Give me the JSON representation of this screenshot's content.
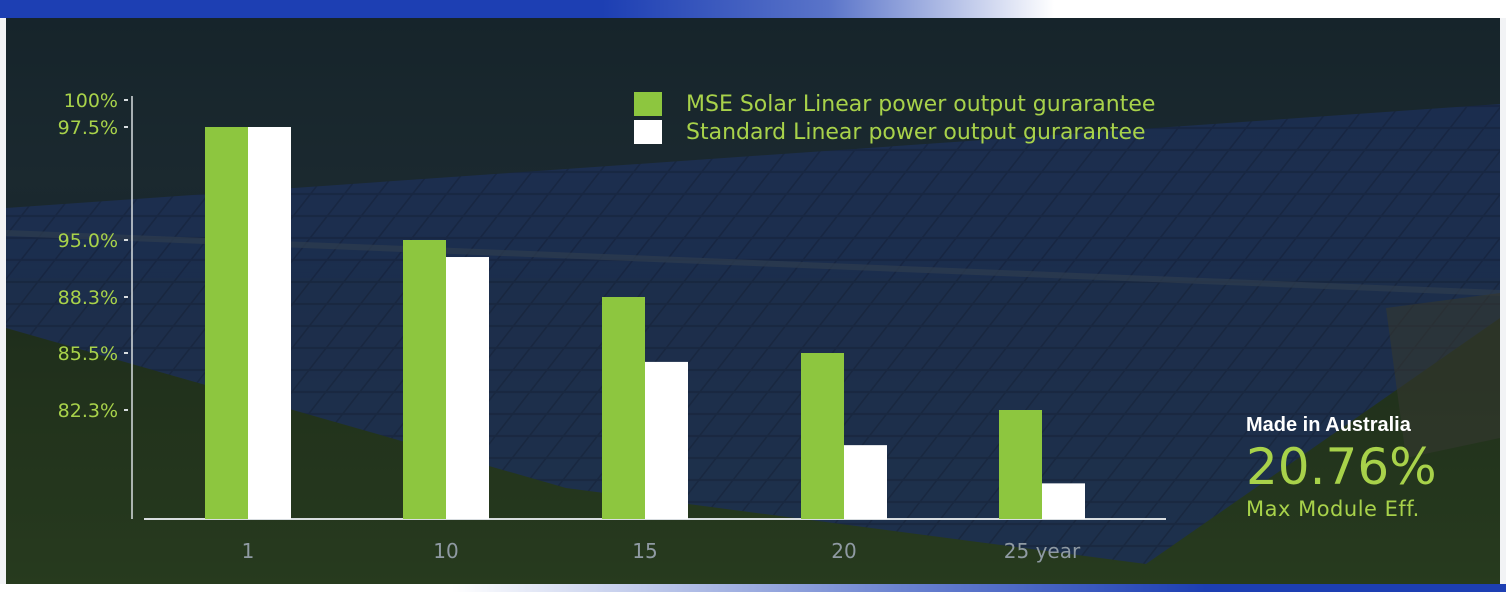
{
  "chart_data": {
    "type": "bar",
    "categories": [
      "1",
      "10",
      "15",
      "20",
      "25 year"
    ],
    "series": [
      {
        "name": "MSE Solar Linear power output gurarantee",
        "values": [
          97.5,
          95.0,
          88.3,
          85.5,
          82.3
        ],
        "color": "#8dc63f"
      },
      {
        "name": "Standard Linear power output gurarantee",
        "values": [
          97.5,
          93.0,
          85.0,
          80.0,
          77.5
        ],
        "color": "#ffffff"
      }
    ],
    "y_ticks": [
      "100%",
      "97.5%",
      "95.0%",
      "88.3%",
      "85.5%",
      "82.3%"
    ],
    "grid": false,
    "legend_position": "top-center"
  },
  "badge": {
    "line1": "Made in Australia",
    "value": "20.76%",
    "line3": "Max Module Eff."
  },
  "colors": {
    "accent_green": "#a8d24a",
    "bar_green": "#8dc63f",
    "bar_white": "#ffffff",
    "frame_blue": "#1d3fb3"
  }
}
